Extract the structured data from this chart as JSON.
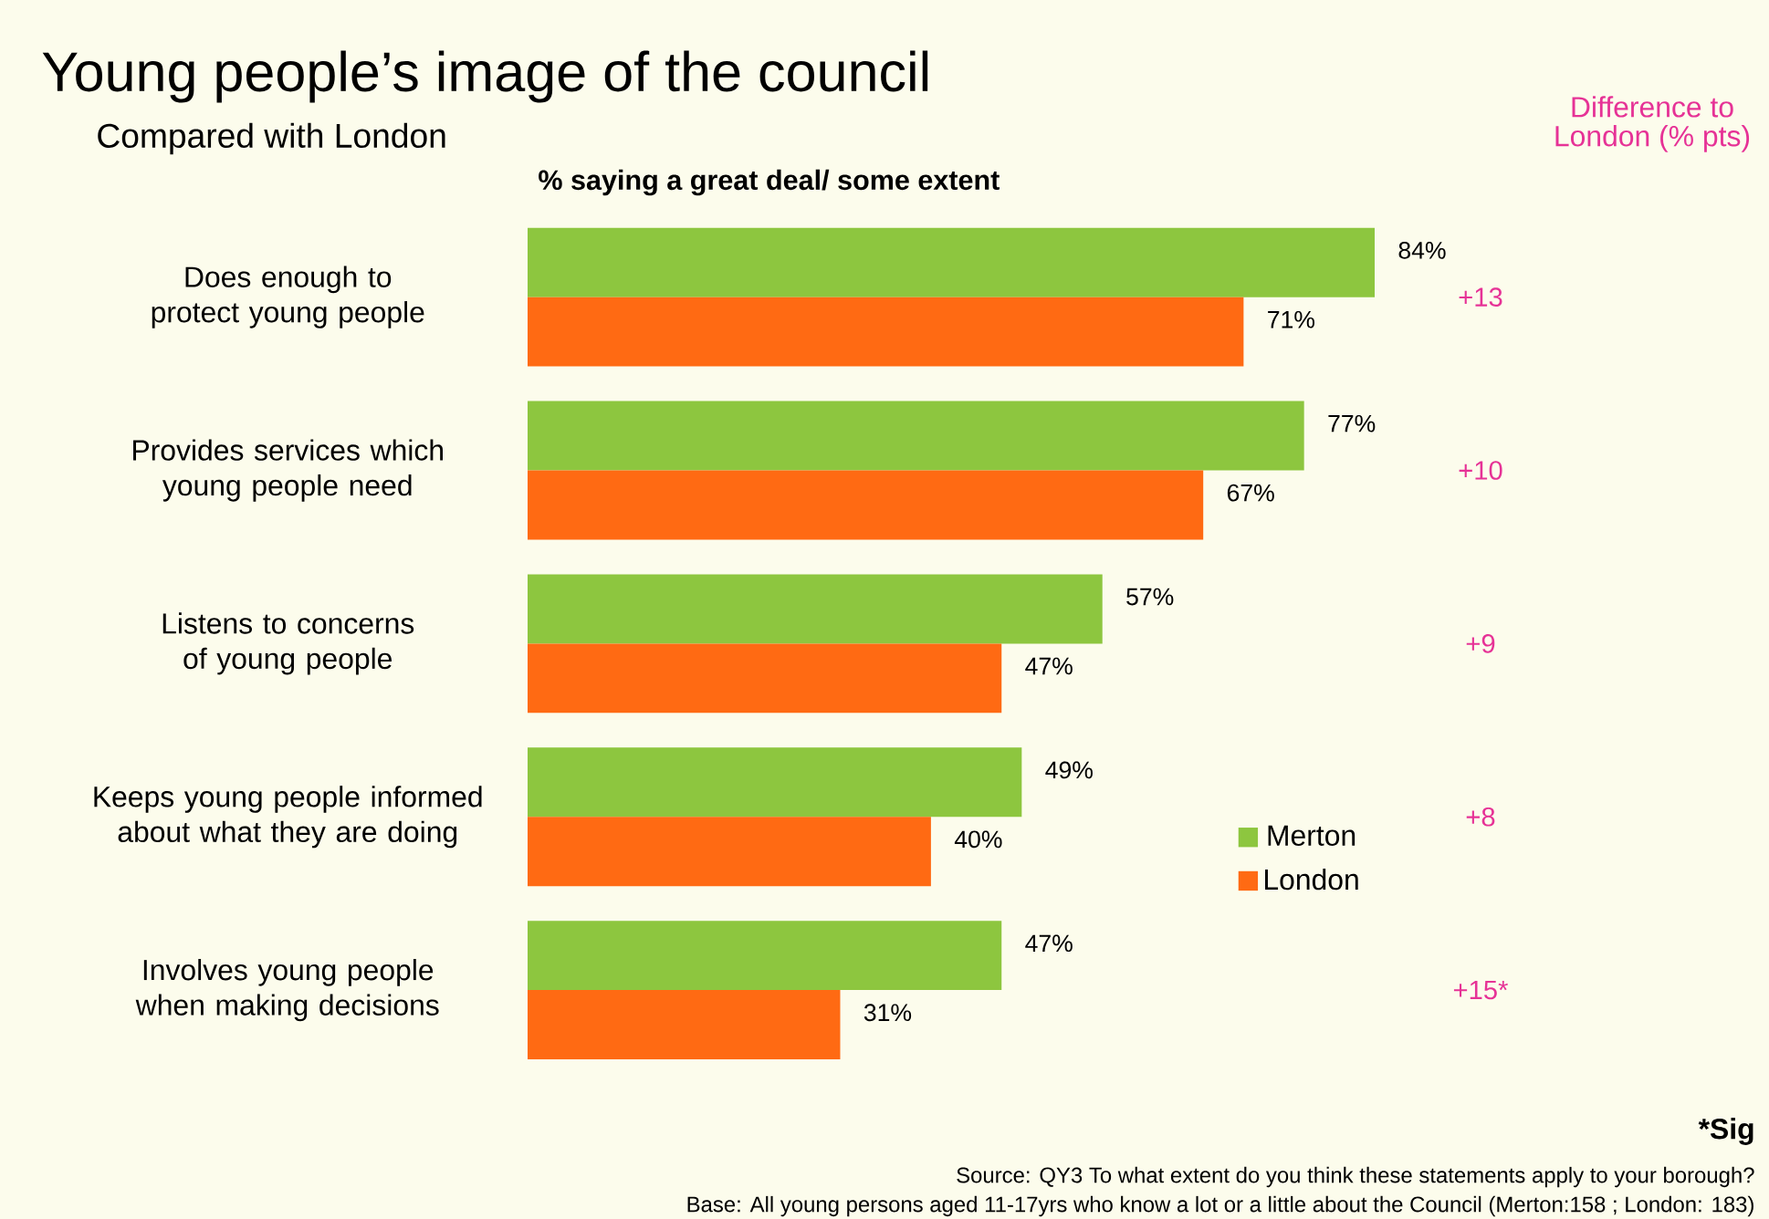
{
  "chart_data": {
    "type": "bar",
    "orientation": "horizontal",
    "title": "Young people’s image of the council",
    "subtitle": "Compared with London",
    "xlabel": "% saying a great deal/ some extent",
    "categories": [
      "Does enough to protect young people",
      "Provides services which young people need",
      "Listens to concerns of young people",
      "Keeps young people informed about what they are doing",
      "Involves young people when making decisions"
    ],
    "series": [
      {
        "name": "Merton",
        "color": "#8dc63f",
        "values": [
          84,
          77,
          57,
          49,
          47
        ],
        "value_labels": [
          "84%",
          "77%",
          "57%",
          "49%",
          "47%"
        ]
      },
      {
        "name": "London",
        "color": "#ff6a13",
        "values": [
          71,
          67,
          47,
          40,
          31
        ],
        "value_labels": [
          "71%",
          "67%",
          "47%",
          "40%",
          "31%"
        ]
      }
    ],
    "tick_labels": "y",
    "legend": "right",
    "annotations": [
      "Difference to London (% pts)",
      "+13",
      "+10",
      "+9",
      "+8",
      "+15*",
      "*Sig",
      "Source: QY3 To what extent do you think these statements apply to your borough?",
      "Base:  All young persons aged 11-17yrs who know a lot or a little about the Council (Merton:158 ; London: 183)"
    ]
  }
}
